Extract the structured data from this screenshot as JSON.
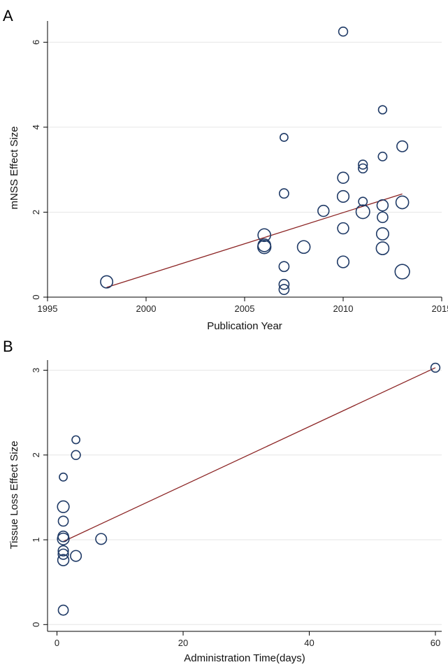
{
  "figure": {
    "panels": [
      "A",
      "B"
    ]
  },
  "colors": {
    "bubble": "#1f3a66",
    "fit_line": "#8b2323",
    "grid": "#e6e6e6",
    "axis": "#000000"
  },
  "chart_data": [
    {
      "type": "scatter",
      "panel": "A",
      "title": "",
      "xlabel": "Publication Year",
      "ylabel": "mNSS Effect Size",
      "xlim": [
        1995,
        2015
      ],
      "ylim": [
        0,
        6.5
      ],
      "xticks": [
        1995,
        2000,
        2005,
        2010,
        2015
      ],
      "xtick_labels": [
        "1995",
        "2000",
        "2005",
        "2010",
        "2015"
      ],
      "yticks": [
        0,
        2,
        4,
        6
      ],
      "ytick_labels": [
        "0",
        "2",
        "4",
        "6"
      ],
      "grid": true,
      "legend": "none",
      "points": [
        {
          "x": 1998,
          "y": 0.36,
          "w": 2.4
        },
        {
          "x": 2006,
          "y": 1.46,
          "w": 2.6
        },
        {
          "x": 2006,
          "y": 1.22,
          "w": 2.6
        },
        {
          "x": 2006,
          "y": 1.18,
          "w": 2.8
        },
        {
          "x": 2007,
          "y": 3.76,
          "w": 1.0
        },
        {
          "x": 2007,
          "y": 2.44,
          "w": 1.4
        },
        {
          "x": 2007,
          "y": 0.72,
          "w": 1.6
        },
        {
          "x": 2007,
          "y": 0.3,
          "w": 1.6
        },
        {
          "x": 2007,
          "y": 0.18,
          "w": 1.6
        },
        {
          "x": 2008,
          "y": 1.18,
          "w": 2.6
        },
        {
          "x": 2009,
          "y": 2.03,
          "w": 2.0
        },
        {
          "x": 2010,
          "y": 6.25,
          "w": 1.3
        },
        {
          "x": 2010,
          "y": 2.81,
          "w": 2.0
        },
        {
          "x": 2010,
          "y": 2.37,
          "w": 2.2
        },
        {
          "x": 2010,
          "y": 1.62,
          "w": 2.0
        },
        {
          "x": 2010,
          "y": 0.83,
          "w": 2.2
        },
        {
          "x": 2011,
          "y": 3.12,
          "w": 1.3
        },
        {
          "x": 2011,
          "y": 3.03,
          "w": 1.3
        },
        {
          "x": 2011,
          "y": 2.25,
          "w": 1.2
        },
        {
          "x": 2011,
          "y": 2.01,
          "w": 3.0
        },
        {
          "x": 2012,
          "y": 4.41,
          "w": 1.1
        },
        {
          "x": 2012,
          "y": 3.31,
          "w": 1.2
        },
        {
          "x": 2012,
          "y": 2.16,
          "w": 2.0
        },
        {
          "x": 2012,
          "y": 1.88,
          "w": 1.8
        },
        {
          "x": 2012,
          "y": 1.49,
          "w": 2.4
        },
        {
          "x": 2012,
          "y": 1.15,
          "w": 2.6
        },
        {
          "x": 2013,
          "y": 3.55,
          "w": 1.9
        },
        {
          "x": 2013,
          "y": 2.23,
          "w": 2.6
        },
        {
          "x": 2013,
          "y": 0.6,
          "w": 3.4
        }
      ],
      "fit_line": {
        "x": [
          1998,
          2013
        ],
        "y": [
          0.23,
          2.43
        ]
      }
    },
    {
      "type": "scatter",
      "panel": "B",
      "title": "",
      "xlabel": "Administration Time(days)",
      "ylabel": "Tissue Loss Effect Size",
      "xlim": [
        -1.5,
        61
      ],
      "ylim": [
        -0.08,
        3.12
      ],
      "xticks": [
        0,
        20,
        40,
        60
      ],
      "xtick_labels": [
        "0",
        "20",
        "40",
        "60"
      ],
      "yticks": [
        0,
        1,
        2,
        3
      ],
      "ytick_labels": [
        "0",
        "1",
        "2",
        "3"
      ],
      "grid": true,
      "legend": "none",
      "points": [
        {
          "x": 1,
          "y": 1.74,
          "w": 1.0
        },
        {
          "x": 1,
          "y": 1.39,
          "w": 2.2
        },
        {
          "x": 1,
          "y": 1.22,
          "w": 1.6
        },
        {
          "x": 1,
          "y": 1.04,
          "w": 1.8
        },
        {
          "x": 1,
          "y": 1.01,
          "w": 2.2
        },
        {
          "x": 1,
          "y": 0.87,
          "w": 1.7
        },
        {
          "x": 1,
          "y": 0.83,
          "w": 1.7
        },
        {
          "x": 1,
          "y": 0.76,
          "w": 2.0
        },
        {
          "x": 1,
          "y": 0.17,
          "w": 1.6
        },
        {
          "x": 3,
          "y": 2.18,
          "w": 1.0
        },
        {
          "x": 3,
          "y": 2.0,
          "w": 1.3
        },
        {
          "x": 3,
          "y": 0.81,
          "w": 1.9
        },
        {
          "x": 7,
          "y": 1.01,
          "w": 1.9
        },
        {
          "x": 60,
          "y": 3.03,
          "w": 1.3
        }
      ],
      "fit_line": {
        "x": [
          1,
          60
        ],
        "y": [
          0.98,
          3.03
        ]
      }
    }
  ]
}
